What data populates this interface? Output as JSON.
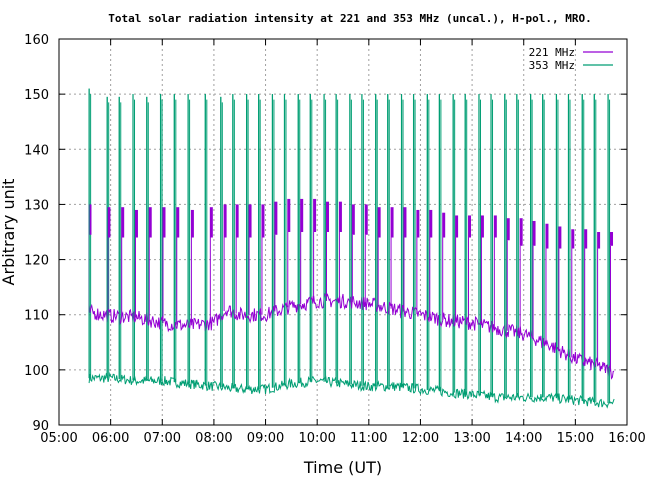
{
  "chart_data": {
    "type": "line",
    "title": "Total solar radiation intensity at 221 and 353 MHz (uncal.), H-pol., MRO.",
    "xlabel": "Time (UT)",
    "ylabel": "Arbitrary unit",
    "xlim": [
      "05:00",
      "16:00"
    ],
    "ylim": [
      90,
      160
    ],
    "x_ticks": [
      "05:00",
      "06:00",
      "07:00",
      "08:00",
      "09:00",
      "10:00",
      "11:00",
      "12:00",
      "13:00",
      "14:00",
      "15:00",
      "16:00"
    ],
    "y_ticks": [
      90,
      100,
      110,
      120,
      130,
      140,
      150,
      160
    ],
    "grid": true,
    "legend_position": "top-right",
    "series": [
      {
        "name": "221 MHz",
        "color": "#9400d3",
        "baseline": {
          "x": [
            "05:35",
            "06:00",
            "06:30",
            "07:00",
            "07:30",
            "08:00",
            "08:15",
            "08:30",
            "09:00",
            "09:30",
            "10:00",
            "10:30",
            "11:00",
            "11:30",
            "12:00",
            "12:30",
            "13:00",
            "13:30",
            "14:00",
            "14:30",
            "15:00",
            "15:30",
            "15:45"
          ],
          "y": [
            110.5,
            109.8,
            109.5,
            108.5,
            108.0,
            108.5,
            111.0,
            110.0,
            110.0,
            111.5,
            112.5,
            112.5,
            112.0,
            111.0,
            110.0,
            109.0,
            108.5,
            107.5,
            106.5,
            104.5,
            102.0,
            100.5,
            99.5
          ]
        },
        "calibration_pulses": {
          "x": [
            "05:36",
            "05:58",
            "06:14",
            "06:30",
            "06:46",
            "07:02",
            "07:18",
            "07:35",
            "07:57",
            "08:13",
            "08:27",
            "08:42",
            "08:57",
            "09:12",
            "09:27",
            "09:42",
            "09:57",
            "10:12",
            "10:27",
            "10:42",
            "10:57",
            "11:12",
            "11:27",
            "11:42",
            "11:57",
            "12:12",
            "12:27",
            "12:42",
            "12:57",
            "13:12",
            "13:27",
            "13:42",
            "13:57",
            "14:12",
            "14:27",
            "14:42",
            "14:57",
            "15:12",
            "15:27",
            "15:42"
          ],
          "low": [
            124.5,
            124.0,
            124.0,
            124.0,
            124.0,
            124.0,
            124.0,
            124.0,
            124.0,
            124.0,
            124.0,
            124.0,
            124.0,
            124.5,
            125.0,
            125.0,
            125.0,
            125.0,
            125.0,
            124.5,
            124.5,
            124.0,
            124.0,
            124.0,
            124.0,
            124.0,
            124.0,
            124.0,
            124.0,
            124.0,
            124.0,
            123.5,
            122.5,
            122.5,
            122.0,
            122.0,
            122.0,
            122.0,
            122.0,
            122.5
          ],
          "high": [
            130.0,
            129.5,
            129.5,
            129.0,
            129.5,
            129.5,
            129.5,
            129.0,
            129.5,
            130.0,
            130.0,
            130.0,
            130.0,
            130.5,
            131.0,
            131.0,
            131.0,
            130.5,
            130.5,
            130.0,
            130.0,
            129.5,
            129.5,
            129.5,
            129.0,
            129.0,
            128.5,
            128.0,
            128.0,
            128.0,
            128.0,
            127.5,
            127.5,
            127.0,
            126.5,
            126.0,
            125.5,
            125.5,
            125.0,
            125.0
          ]
        }
      },
      {
        "name": "353 MHz",
        "color": "#009e73",
        "baseline": {
          "x": [
            "05:35",
            "06:00",
            "06:30",
            "07:00",
            "07:30",
            "08:00",
            "08:30",
            "09:00",
            "09:30",
            "10:00",
            "10:30",
            "11:00",
            "11:30",
            "12:00",
            "12:30",
            "13:00",
            "13:30",
            "14:00",
            "14:30",
            "15:00",
            "15:30",
            "15:45"
          ],
          "y": [
            98.5,
            98.5,
            98.0,
            98.0,
            97.5,
            97.0,
            96.5,
            96.5,
            97.5,
            98.0,
            97.5,
            97.0,
            97.0,
            96.5,
            96.0,
            95.5,
            95.0,
            95.0,
            95.0,
            94.5,
            94.0,
            94.0
          ]
        },
        "calibration_pulses": {
          "x": [
            "05:35",
            "05:56",
            "06:10",
            "06:26",
            "06:42",
            "06:58",
            "07:14",
            "07:30",
            "07:50",
            "08:08",
            "08:22",
            "08:38",
            "08:52",
            "09:08",
            "09:22",
            "09:38",
            "09:52",
            "10:08",
            "10:22",
            "10:38",
            "10:52",
            "11:08",
            "11:22",
            "11:38",
            "11:52",
            "12:08",
            "12:22",
            "12:38",
            "12:52",
            "13:08",
            "13:22",
            "13:38",
            "13:52",
            "14:08",
            "14:22",
            "14:38",
            "14:52",
            "15:08",
            "15:22",
            "15:38"
          ],
          "high": [
            151.0,
            149.5,
            149.5,
            150.0,
            149.5,
            150.0,
            150.0,
            150.0,
            150.0,
            149.5,
            150.0,
            150.0,
            150.0,
            150.0,
            150.0,
            150.0,
            150.0,
            150.0,
            150.0,
            150.0,
            150.0,
            150.0,
            150.0,
            150.0,
            150.0,
            150.0,
            150.0,
            150.0,
            150.0,
            150.0,
            150.0,
            150.0,
            150.0,
            150.0,
            150.0,
            150.0,
            150.0,
            150.0,
            150.0,
            150.0
          ]
        }
      }
    ]
  }
}
